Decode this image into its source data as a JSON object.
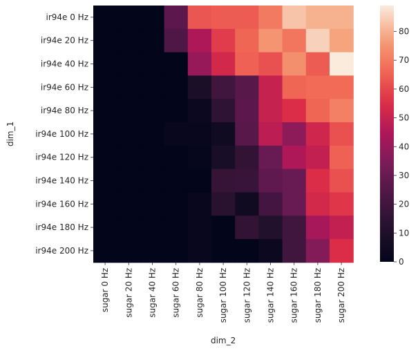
{
  "chart_data": {
    "type": "heatmap",
    "xlabel": "dim_2",
    "ylabel": "dim_1",
    "x_categories": [
      "sugar 0 Hz",
      "sugar 20 Hz",
      "sugar 40 Hz",
      "sugar 60 Hz",
      "sugar 80 Hz",
      "sugar 100 Hz",
      "sugar 120 Hz",
      "sugar 140 Hz",
      "sugar 160 Hz",
      "sugar 180 Hz",
      "sugar 200 Hz"
    ],
    "y_categories": [
      "ir94e 0 Hz",
      "ir94e 20 Hz",
      "ir94e 40 Hz",
      "ir94e 60 Hz",
      "ir94e 80 Hz",
      "ir94e 100 Hz",
      "ir94e 120 Hz",
      "ir94e 140 Hz",
      "ir94e 160 Hz",
      "ir94e 180 Hz",
      "ir94e 200 Hz"
    ],
    "values": [
      [
        0,
        0,
        0,
        27,
        63,
        64,
        64,
        70,
        83,
        80,
        80
      ],
      [
        0,
        0,
        0,
        24,
        45,
        58,
        66,
        75,
        69,
        85,
        78
      ],
      [
        0,
        0,
        0,
        0,
        40,
        53,
        65,
        62,
        74,
        64,
        89
      ],
      [
        0,
        0,
        0,
        0,
        9,
        20,
        26,
        50,
        66,
        67,
        67
      ],
      [
        0,
        0,
        0,
        0,
        3,
        15,
        27,
        50,
        55,
        66,
        71
      ],
      [
        0,
        0,
        0,
        2,
        2,
        5,
        26,
        48,
        38,
        52,
        62
      ],
      [
        0,
        0,
        0,
        0,
        1,
        8,
        16,
        30,
        45,
        49,
        65
      ],
      [
        0,
        0,
        0,
        0,
        0,
        17,
        18,
        28,
        30,
        55,
        62
      ],
      [
        0,
        0,
        0,
        0,
        2,
        13,
        5,
        21,
        30,
        53,
        57
      ],
      [
        0,
        0,
        0,
        0,
        2,
        0,
        16,
        11,
        20,
        43,
        49
      ],
      [
        0,
        0,
        0,
        0,
        2,
        0,
        0,
        3,
        20,
        36,
        55
      ]
    ],
    "colorbar": {
      "min": 0,
      "max": 89,
      "ticks": [
        0,
        10,
        20,
        30,
        40,
        50,
        60,
        70,
        80
      ]
    },
    "colormap": "rocket"
  }
}
